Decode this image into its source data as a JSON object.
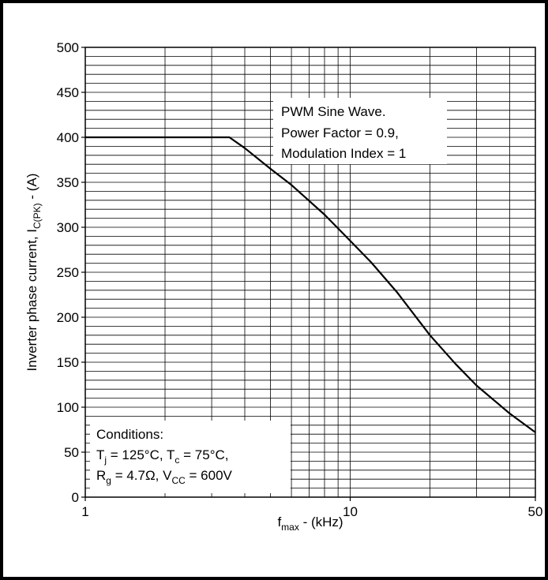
{
  "chart_data": {
    "type": "line",
    "x_scale": "log",
    "xlim": [
      1,
      50
    ],
    "ylim": [
      0,
      500
    ],
    "grid": true,
    "ylabel": {
      "main": "Inverter phase current, I",
      "sub": "C(PK)",
      "unit": " - (A)"
    },
    "xlabel": {
      "main": "f",
      "sub": "max",
      "unit": " - (kHz)"
    },
    "x_ticks": [
      {
        "value": 1,
        "label": "1"
      },
      {
        "value": 10,
        "label": "10"
      },
      {
        "value": 50,
        "label": "50"
      }
    ],
    "y_ticks": [
      {
        "value": 0,
        "label": "0"
      },
      {
        "value": 50,
        "label": "50"
      },
      {
        "value": 100,
        "label": "100"
      },
      {
        "value": 150,
        "label": "150"
      },
      {
        "value": 200,
        "label": "200"
      },
      {
        "value": 250,
        "label": "250"
      },
      {
        "value": 300,
        "label": "300"
      },
      {
        "value": 350,
        "label": "350"
      },
      {
        "value": 400,
        "label": "400"
      },
      {
        "value": 450,
        "label": "450"
      },
      {
        "value": 500,
        "label": "500"
      }
    ],
    "series": [
      {
        "color": "#000000",
        "x": [
          1,
          2,
          3.5,
          4,
          5,
          6,
          8,
          10,
          12,
          15,
          20,
          25,
          30,
          40,
          50
        ],
        "y": [
          400,
          400,
          400,
          388,
          365,
          347,
          314,
          285,
          261,
          228,
          180,
          148,
          124,
          93,
          72
        ]
      }
    ],
    "annotations": {
      "waveform": {
        "lines": [
          "PWM Sine Wave.",
          "Power Factor = 0.9,",
          "Modulation Index = 1"
        ]
      },
      "conditions": {
        "title": "Conditions:",
        "line1": {
          "tj": "T",
          "tj_sub": "j",
          "tj_val": " = 125°C, T",
          "tc_sub": "c",
          "tc_val": " = 75°C,"
        },
        "line2": {
          "rg": "R",
          "rg_sub": "g",
          "rg_val": " = 4.7Ω, V",
          "vcc_sub": "CC",
          "vcc_val": " = 600V"
        }
      }
    }
  }
}
